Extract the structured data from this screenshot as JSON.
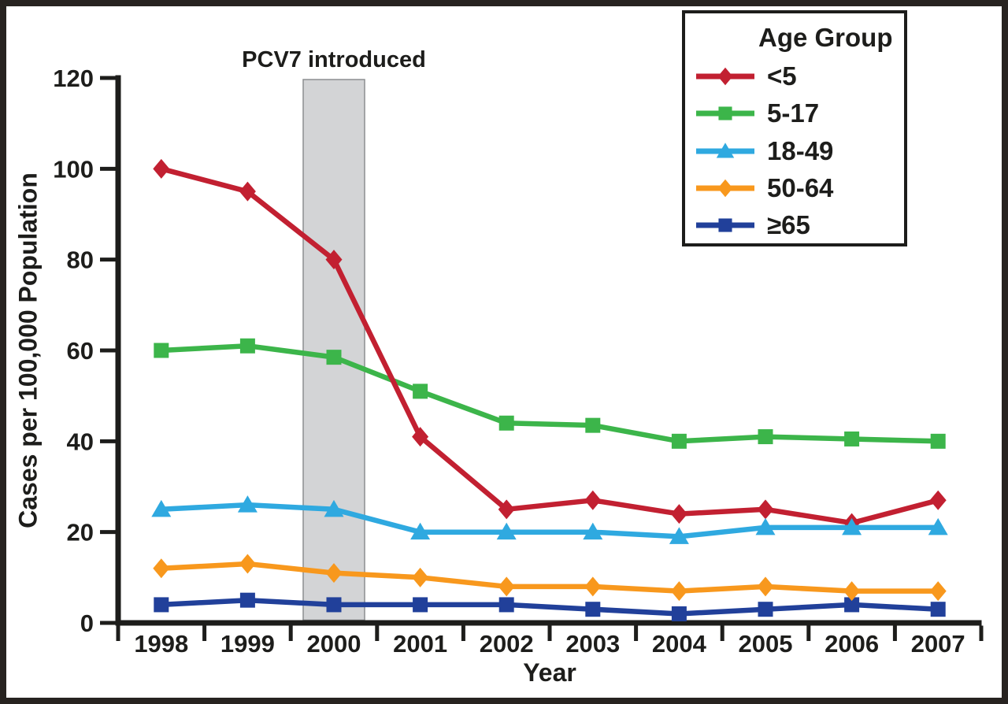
{
  "colors": {
    "ink": "#1d1d1b",
    "frame_border": "#272320",
    "background": "#ffffff",
    "band_fill": "#d3d4d6",
    "band_border": "#8c8e90"
  },
  "chart_data": {
    "type": "line",
    "title": "",
    "xlabel": "Year",
    "ylabel": "Cases per 100,000 Population",
    "x": [
      "1998",
      "1999",
      "2000",
      "2001",
      "2002",
      "2003",
      "2004",
      "2005",
      "2006",
      "2007"
    ],
    "y_ticks": [
      0,
      20,
      40,
      60,
      80,
      100,
      120
    ],
    "ylim": [
      0,
      120
    ],
    "grid": false,
    "legend": {
      "title": "Age Group",
      "position": "top-right"
    },
    "annotation": {
      "label": "PCV7 introduced",
      "year": "2000"
    },
    "series": [
      {
        "name": "<5",
        "color": "#c22031",
        "marker": "diamond",
        "values": [
          100,
          95,
          80,
          41,
          25,
          27,
          24,
          25,
          22,
          27
        ]
      },
      {
        "name": "5-17",
        "color": "#3cb54a",
        "marker": "square",
        "values": [
          60,
          61,
          58.5,
          51,
          44,
          43.5,
          40,
          41,
          40.5,
          40
        ]
      },
      {
        "name": "18-49",
        "color": "#2fa9e0",
        "marker": "triangle",
        "values": [
          25,
          26,
          25,
          20,
          20,
          20,
          19,
          21,
          21,
          21
        ]
      },
      {
        "name": "50-64",
        "color": "#f8981d",
        "marker": "diamond",
        "values": [
          12,
          13,
          11,
          10,
          8,
          8,
          7,
          8,
          7,
          7
        ]
      },
      {
        "name": "≥65",
        "color": "#21409a",
        "marker": "square",
        "values": [
          4,
          5,
          4,
          4,
          4,
          3,
          2,
          3,
          4,
          3
        ]
      }
    ]
  }
}
